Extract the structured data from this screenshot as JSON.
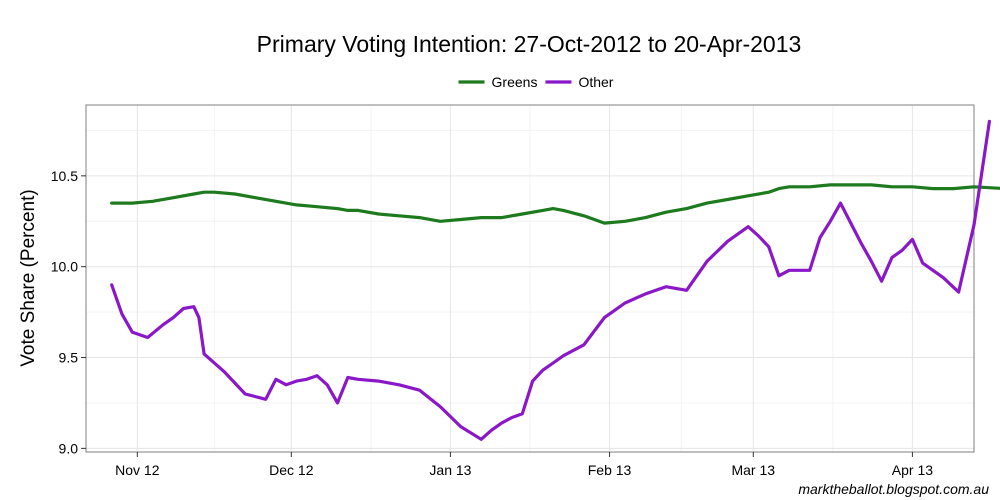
{
  "chart_data": {
    "type": "line",
    "title": "Primary Voting Intention: 27-Oct-2012 to 20-Apr-2013",
    "xlabel": "",
    "ylabel": "Vote Share (Percent)",
    "credit": "marktheballot.blogspot.com.au",
    "legend_position": "top",
    "grid": true,
    "ylim": [
      8.98,
      10.89
    ],
    "xlim": [
      -10,
      163
    ],
    "x_unit": "days since 1-Nov-2012",
    "yticks": [
      {
        "value": 9.0,
        "label": "9.0"
      },
      {
        "value": 9.5,
        "label": "9.5"
      },
      {
        "value": 10.0,
        "label": "10.0"
      },
      {
        "value": 10.5,
        "label": "10.5"
      }
    ],
    "xticks": [
      {
        "value": 0,
        "label": "Nov 12"
      },
      {
        "value": 30,
        "label": "Dec 12"
      },
      {
        "value": 61,
        "label": "Jan 13"
      },
      {
        "value": 92,
        "label": "Feb 13"
      },
      {
        "value": 120,
        "label": "Mar 13"
      },
      {
        "value": 151,
        "label": "Apr 13"
      }
    ],
    "series": [
      {
        "name": "Greens",
        "color": "#1e7a1e",
        "x": [
          -5,
          -1,
          3,
          7,
          11,
          13,
          15,
          19,
          23,
          27,
          31,
          35,
          39,
          41,
          43,
          47,
          51,
          55,
          59,
          63,
          67,
          71,
          75,
          79,
          81,
          83,
          87,
          91,
          95,
          99,
          103,
          107,
          111,
          115,
          119,
          123,
          125,
          127,
          131,
          135,
          139,
          143,
          147,
          151,
          155,
          159,
          163,
          169,
          171
        ],
        "values": [
          10.35,
          10.35,
          10.36,
          10.38,
          10.4,
          10.41,
          10.41,
          10.4,
          10.38,
          10.36,
          10.34,
          10.33,
          10.32,
          10.31,
          10.31,
          10.29,
          10.28,
          10.27,
          10.25,
          10.26,
          10.27,
          10.27,
          10.29,
          10.31,
          10.32,
          10.31,
          10.28,
          10.24,
          10.25,
          10.27,
          10.3,
          10.32,
          10.35,
          10.37,
          10.39,
          10.41,
          10.43,
          10.44,
          10.44,
          10.45,
          10.45,
          10.45,
          10.44,
          10.44,
          10.43,
          10.43,
          10.44,
          10.43,
          10.42
        ]
      },
      {
        "name": "Other",
        "color": "#8a18c8",
        "x": [
          -5,
          -3,
          -1,
          2,
          5,
          7,
          9,
          11,
          12,
          13,
          17,
          21,
          25,
          27,
          29,
          31,
          33,
          35,
          37,
          39,
          41,
          43,
          47,
          51,
          55,
          59,
          63,
          67,
          69,
          71,
          73,
          75,
          77,
          79,
          81,
          83,
          87,
          91,
          93,
          95,
          99,
          103,
          107,
          111,
          115,
          119,
          121,
          123,
          125,
          127,
          129,
          131,
          133,
          135,
          137,
          139,
          141,
          143,
          145,
          147,
          149,
          151,
          153,
          155,
          157,
          160,
          163,
          166
        ],
        "values": [
          9.9,
          9.74,
          9.64,
          9.61,
          9.68,
          9.72,
          9.77,
          9.78,
          9.72,
          9.52,
          9.42,
          9.3,
          9.27,
          9.38,
          9.35,
          9.37,
          9.38,
          9.4,
          9.35,
          9.25,
          9.39,
          9.38,
          9.37,
          9.35,
          9.32,
          9.23,
          9.12,
          9.05,
          9.1,
          9.14,
          9.17,
          9.19,
          9.37,
          9.43,
          9.47,
          9.51,
          9.57,
          9.72,
          9.76,
          9.8,
          9.85,
          9.89,
          9.87,
          10.03,
          10.14,
          10.22,
          10.17,
          10.11,
          9.95,
          9.98,
          9.98,
          9.98,
          10.16,
          10.25,
          10.35,
          10.24,
          10.13,
          10.03,
          9.92,
          10.05,
          10.09,
          10.15,
          10.02,
          9.98,
          9.94,
          9.86,
          10.23,
          10.8
        ]
      }
    ]
  }
}
